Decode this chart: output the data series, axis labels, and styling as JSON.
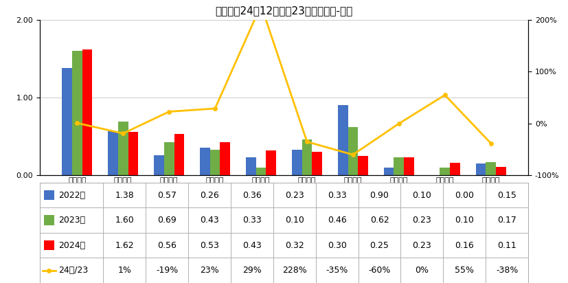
{
  "title": "皮卡企业24年12月同比23年增长分析-万台",
  "categories": [
    "长城汽车",
    "江铃汽车",
    "江淮汽车",
    "郑州日产",
    "长安汽车",
    "江西五十\n铃",
    "上汽大通",
    "北汽福田",
    "雷达汽车",
    "河北中兴"
  ],
  "series_2022": [
    1.38,
    0.57,
    0.26,
    0.36,
    0.23,
    0.33,
    0.9,
    0.1,
    0.0,
    0.15
  ],
  "series_2023": [
    1.6,
    0.69,
    0.43,
    0.33,
    0.1,
    0.46,
    0.62,
    0.23,
    0.1,
    0.17
  ],
  "series_2024": [
    1.62,
    0.56,
    0.53,
    0.43,
    0.32,
    0.3,
    0.25,
    0.23,
    0.16,
    0.11
  ],
  "yoy_ratio": [
    0.01,
    -0.19,
    0.23,
    0.29,
    2.28,
    -0.35,
    -0.6,
    0.0,
    0.55,
    -0.38
  ],
  "yoy_labels": [
    "1%",
    "-19%",
    "23%",
    "29%",
    "228%",
    "-35%",
    "-60%",
    "0%",
    "55%",
    "-38%"
  ],
  "color_2022": "#4472C4",
  "color_2023": "#70AD47",
  "color_2024": "#FF0000",
  "color_line": "#FFC000",
  "legend_labels": [
    "2022年",
    "2023年",
    "2024年",
    "24年/23"
  ],
  "table_row_labels": [
    "2022年",
    "2023年",
    "2024年",
    "24年/23"
  ]
}
